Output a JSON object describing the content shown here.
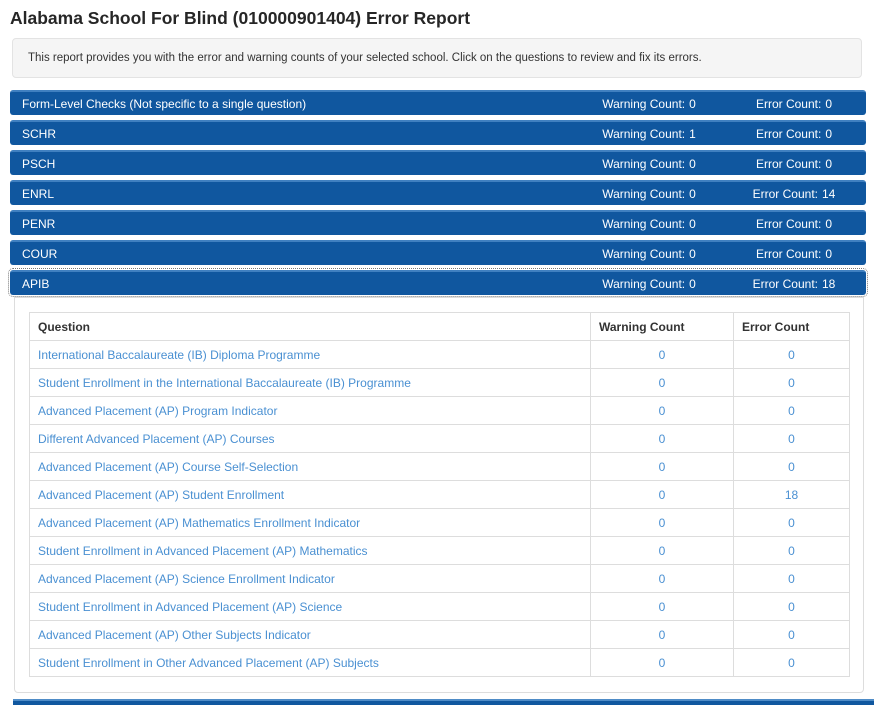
{
  "page": {
    "title": "Alabama School For Blind (010000901404) Error Report",
    "description": "This report provides you with the error and warning counts of your selected school. Click on the questions to review and fix its errors."
  },
  "labels": {
    "warning_prefix": "Warning Count:",
    "error_prefix": "Error Count:"
  },
  "colors": {
    "section_bar_blue": "#10579f",
    "section_bar_top_border": "#4080c0",
    "link_blue": "#4a90d2",
    "info_box_background": "#f5f5f5",
    "table_border": "#dddddd"
  },
  "sections": [
    {
      "name": "Form-Level Checks (Not specific to a single question)",
      "warning_count": "0",
      "error_count": "0"
    },
    {
      "name": "SCHR",
      "warning_count": "1",
      "error_count": "0"
    },
    {
      "name": "PSCH",
      "warning_count": "0",
      "error_count": "0"
    },
    {
      "name": "ENRL",
      "warning_count": "0",
      "error_count": "14"
    },
    {
      "name": "PENR",
      "warning_count": "0",
      "error_count": "0"
    },
    {
      "name": "COUR",
      "warning_count": "0",
      "error_count": "0"
    },
    {
      "name": "APIB",
      "warning_count": "0",
      "error_count": "18"
    }
  ],
  "table": {
    "headers": [
      "Question",
      "Warning Count",
      "Error Count"
    ],
    "rows": [
      {
        "question": "International Baccalaureate (IB) Diploma Programme",
        "warning_count": "0",
        "error_count": "0"
      },
      {
        "question": "Student Enrollment in the International Baccalaureate (IB) Programme",
        "warning_count": "0",
        "error_count": "0"
      },
      {
        "question": "Advanced Placement (AP) Program Indicator",
        "warning_count": "0",
        "error_count": "0"
      },
      {
        "question": "Different Advanced Placement (AP) Courses",
        "warning_count": "0",
        "error_count": "0"
      },
      {
        "question": "Advanced Placement (AP) Course Self-Selection",
        "warning_count": "0",
        "error_count": "0"
      },
      {
        "question": "Advanced Placement (AP) Student Enrollment",
        "warning_count": "0",
        "error_count": "18"
      },
      {
        "question": "Advanced Placement (AP) Mathematics Enrollment Indicator",
        "warning_count": "0",
        "error_count": "0"
      },
      {
        "question": "Student Enrollment in Advanced Placement (AP) Mathematics",
        "warning_count": "0",
        "error_count": "0"
      },
      {
        "question": "Advanced Placement (AP) Science Enrollment Indicator",
        "warning_count": "0",
        "error_count": "0"
      },
      {
        "question": "Student Enrollment in Advanced Placement (AP) Science",
        "warning_count": "0",
        "error_count": "0"
      },
      {
        "question": "Advanced Placement (AP) Other Subjects Indicator",
        "warning_count": "0",
        "error_count": "0"
      },
      {
        "question": "Student Enrollment in Other Advanced Placement (AP) Subjects",
        "warning_count": "0",
        "error_count": "0"
      }
    ]
  }
}
